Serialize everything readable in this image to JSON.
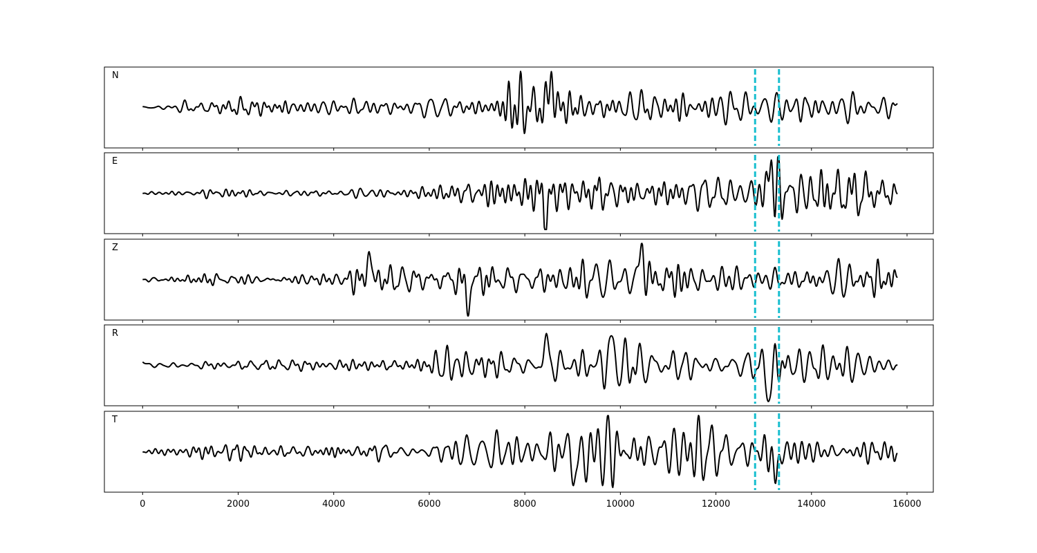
{
  "chart_data": {
    "type": "line",
    "title": "",
    "xlabel": "",
    "ylabel": "",
    "xlim": [
      -800,
      16550
    ],
    "x_ticks": [
      "0",
      "2000",
      "4000",
      "6000",
      "8000",
      "10000",
      "12000",
      "14000",
      "16000"
    ],
    "grid": false,
    "x_range": [
      0,
      15800
    ],
    "markers": {
      "color": "#17becf",
      "x": [
        12820,
        13320
      ]
    },
    "line_color": "#000000",
    "series": [
      {
        "name": "N",
        "envelope": [
          [
            0,
            0.3
          ],
          [
            3000,
            0.4
          ],
          [
            5000,
            0.45
          ],
          [
            6500,
            0.55
          ],
          [
            8000,
            0.75
          ],
          [
            10000,
            0.7
          ],
          [
            12000,
            0.65
          ],
          [
            13500,
            0.6
          ],
          [
            15800,
            0.75
          ]
        ],
        "spikes": [
          [
            8550,
            0.85
          ]
        ],
        "seed": 11,
        "start": 0.03,
        "end": 0.1
      },
      {
        "name": "E",
        "envelope": [
          [
            0,
            0.1
          ],
          [
            2000,
            0.14
          ],
          [
            4000,
            0.2
          ],
          [
            6000,
            0.28
          ],
          [
            6800,
            0.5
          ],
          [
            8500,
            0.65
          ],
          [
            11000,
            0.6
          ],
          [
            12800,
            0.5
          ],
          [
            13200,
            0.85
          ],
          [
            15800,
            0.7
          ]
        ],
        "spikes": [
          [
            8450,
            -0.75
          ],
          [
            13150,
            0.85
          ]
        ],
        "seed": 23,
        "start": 0.0,
        "end": -0.03
      },
      {
        "name": "Z",
        "envelope": [
          [
            0,
            0.15
          ],
          [
            4200,
            0.18
          ],
          [
            4500,
            0.45
          ],
          [
            5500,
            0.3
          ],
          [
            6800,
            0.55
          ],
          [
            9000,
            0.65
          ],
          [
            11000,
            0.6
          ],
          [
            13000,
            0.5
          ],
          [
            15800,
            0.4
          ]
        ],
        "spikes": [
          [
            4750,
            0.7
          ],
          [
            10450,
            0.95
          ],
          [
            6800,
            -0.75
          ]
        ],
        "seed": 37,
        "start": 0.0,
        "end": 0.15
      },
      {
        "name": "R",
        "envelope": [
          [
            0,
            0.2
          ],
          [
            2000,
            0.15
          ],
          [
            4000,
            0.15
          ],
          [
            6000,
            0.35
          ],
          [
            8300,
            0.7
          ],
          [
            10000,
            0.65
          ],
          [
            12000,
            0.45
          ],
          [
            13200,
            0.75
          ],
          [
            15800,
            0.65
          ]
        ],
        "spikes": [
          [
            8450,
            0.7
          ],
          [
            9800,
            0.65
          ],
          [
            13100,
            -0.9
          ]
        ],
        "seed": 53,
        "start": 0.15,
        "end": 0.0
      },
      {
        "name": "T",
        "envelope": [
          [
            0,
            0.2
          ],
          [
            2000,
            0.25
          ],
          [
            4000,
            0.25
          ],
          [
            6000,
            0.35
          ],
          [
            7000,
            0.6
          ],
          [
            9000,
            0.75
          ],
          [
            11000,
            0.8
          ],
          [
            13300,
            0.75
          ],
          [
            15800,
            0.75
          ]
        ],
        "spikes": [
          [
            9100,
            -0.8
          ],
          [
            13250,
            -0.85
          ]
        ],
        "seed": 71,
        "start": 0.0,
        "end": -0.12
      }
    ]
  }
}
